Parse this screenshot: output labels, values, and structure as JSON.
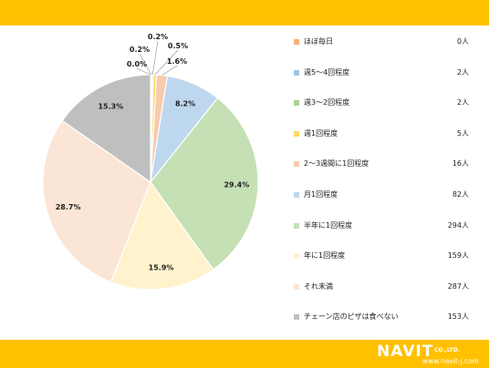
{
  "chart_data": {
    "type": "pie",
    "slices": [
      {
        "label": "ほぼ毎日",
        "count": "0人",
        "value": 0.0,
        "value_label": "0.0%",
        "color": "#f4b183"
      },
      {
        "label": "週5～4回程度",
        "count": "2人",
        "value": 0.2,
        "value_label": "0.2%",
        "color": "#9dc3e6"
      },
      {
        "label": "週3～2回程度",
        "count": "2人",
        "value": 0.2,
        "value_label": "0.2%",
        "color": "#a9d18e"
      },
      {
        "label": "週1回程度",
        "count": "5人",
        "value": 0.5,
        "value_label": "0.5%",
        "color": "#ffd966"
      },
      {
        "label": "2～3週間に1回程度",
        "count": "16人",
        "value": 1.6,
        "value_label": "1.6%",
        "color": "#f8cbad"
      },
      {
        "label": "月1回程度",
        "count": "82人",
        "value": 8.2,
        "value_label": "8.2%",
        "color": "#bdd7ee"
      },
      {
        "label": "半年に1回程度",
        "count": "294人",
        "value": 29.4,
        "value_label": "29.4%",
        "color": "#c5e0b4"
      },
      {
        "label": "年に1回程度",
        "count": "159人",
        "value": 15.9,
        "value_label": "15.9%",
        "color": "#fff2cc"
      },
      {
        "label": "それ未満",
        "count": "287人",
        "value": 28.7,
        "value_label": "28.7%",
        "color": "#fbe5d6"
      },
      {
        "label": "チェーン店のピザは食べない",
        "count": "153人",
        "value": 15.3,
        "value_label": "15.3%",
        "color": "#bfbfbf"
      }
    ],
    "legend_position": "right",
    "start_angle": "12 o'clock",
    "direction": "clockwise"
  },
  "branding": {
    "logo_text": "NAVIT",
    "logo_sub": "CO.,LTD.",
    "url": "www.navit-j.com"
  },
  "colors": {
    "band": "#ffc000",
    "slice_border": "#ffffff",
    "label_text": "#222222"
  }
}
